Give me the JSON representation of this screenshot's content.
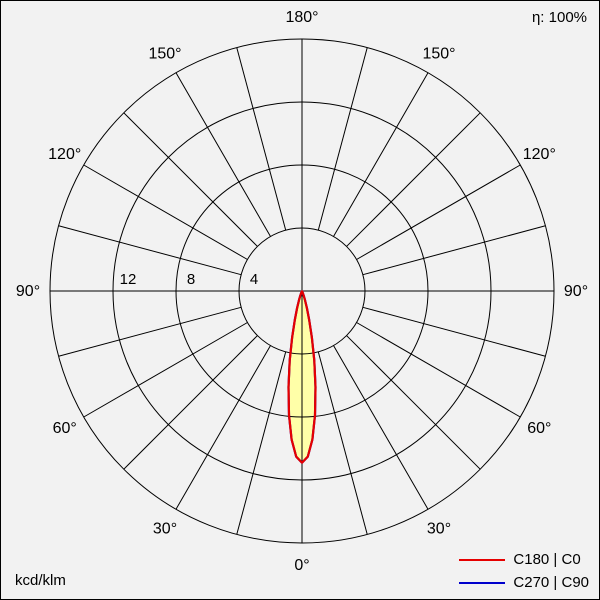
{
  "header": {
    "efficiency": "η: 100%"
  },
  "footer": {
    "unit": "kcd/klm"
  },
  "legend": {
    "items": [
      {
        "label": "C180 | C0",
        "color": "#e60000"
      },
      {
        "label": "C270 | C90",
        "color": "#0000cc"
      }
    ]
  },
  "chart_data": {
    "type": "polar",
    "subtype": "luminous-intensity-distribution",
    "unit": "kcd/klm",
    "efficiency_label": "η: 100%",
    "grid": {
      "rings_kcd_klm": [
        4,
        8,
        12,
        16
      ],
      "ring_labels": [
        "4",
        "8",
        "12"
      ],
      "angle_step_deg": 15,
      "angle_labels_deg": [
        0,
        30,
        60,
        90,
        120,
        150,
        180
      ],
      "zero_direction": "down"
    },
    "series": [
      {
        "name": "C180 | C0",
        "color": "#e60000",
        "fill": "#ffffa8",
        "peak_kcd_per_klm": 10.9,
        "peak_gamma_deg": 0,
        "gamma_deg": [
          0,
          2,
          4,
          6,
          8,
          10,
          12,
          14,
          16,
          18,
          20,
          22,
          24,
          26
        ],
        "intensity": [
          10.9,
          10.52,
          9.45,
          7.92,
          6.17,
          4.48,
          3.03,
          1.9,
          1.12,
          0.61,
          0.31,
          0.15,
          0.07,
          0.03
        ]
      },
      {
        "name": "C270 | C90",
        "color": "#0000cc",
        "fill": "none",
        "peak_kcd_per_klm": 10.9,
        "peak_gamma_deg": 0,
        "gamma_deg": [
          0,
          2,
          4,
          6,
          8,
          10,
          12,
          14,
          16,
          18,
          20,
          22,
          24,
          26
        ],
        "intensity": [
          10.9,
          10.52,
          9.45,
          7.92,
          6.17,
          4.48,
          3.03,
          1.9,
          1.12,
          0.61,
          0.31,
          0.15,
          0.07,
          0.03
        ]
      }
    ]
  }
}
